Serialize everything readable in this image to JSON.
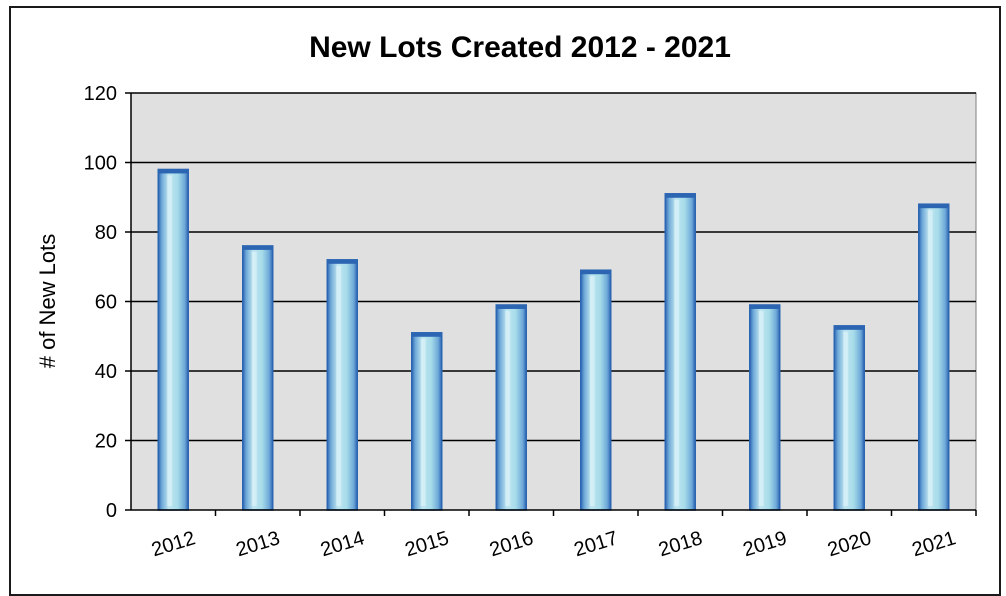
{
  "chart_data": {
    "type": "bar",
    "title": "New Lots Created 2012 - 2021",
    "xlabel": "",
    "ylabel": "# of New Lots",
    "categories": [
      "2012",
      "2013",
      "2014",
      "2015",
      "2016",
      "2017",
      "2018",
      "2019",
      "2020",
      "2021"
    ],
    "values": [
      98,
      76,
      72,
      51,
      59,
      69,
      91,
      59,
      53,
      88
    ],
    "ylim": [
      0,
      120
    ],
    "yticks": [
      0,
      20,
      40,
      60,
      80,
      100,
      120
    ],
    "grid": true,
    "legend": "none",
    "colors": {
      "plot_background": "#e0e0e0",
      "bar_fill": "#a6dbe9",
      "bar_edge": "#2c66b3",
      "gridline": "#000000"
    }
  }
}
